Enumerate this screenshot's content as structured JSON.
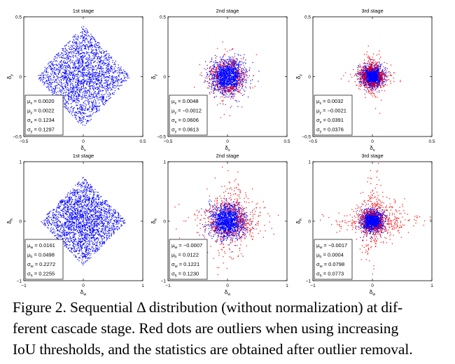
{
  "chart_data": [
    {
      "type": "scatter",
      "title": "1st stage",
      "xlabel": "δx",
      "ylabel": "δy",
      "xlim": [
        -0.5,
        0.5
      ],
      "ylim": [
        -0.5,
        0.5
      ],
      "xticks": [
        "-0.5",
        "0",
        "0.5"
      ],
      "yticks": [
        "0.5",
        "0",
        "-0.5"
      ],
      "spread": [
        0.1234,
        0.1297
      ],
      "outlier_spread": 0,
      "stats_box": [
        "μx = 0.0020",
        "μy = 0.0022",
        "σx = 0.1234",
        "σy = 0.1297"
      ],
      "series": [
        {
          "name": "inliers",
          "color": "#0000ff"
        }
      ]
    },
    {
      "type": "scatter",
      "title": "2nd stage",
      "xlabel": "δx",
      "ylabel": "δy",
      "xlim": [
        -0.5,
        0.5
      ],
      "ylim": [
        -0.5,
        0.5
      ],
      "xticks": [
        "-0.5",
        "0",
        "0.5"
      ],
      "yticks": [
        "0.5",
        "0",
        "-0.5"
      ],
      "spread": [
        0.0606,
        0.0613
      ],
      "outlier_spread": 0.16,
      "stats_box": [
        "μx = 0.0048",
        "μy = −0.0012",
        "σx = 0.0606",
        "σy = 0.0613"
      ],
      "series": [
        {
          "name": "inliers",
          "color": "#0000ff"
        },
        {
          "name": "outliers",
          "color": "#ff0000"
        }
      ]
    },
    {
      "type": "scatter",
      "title": "3rd stage",
      "xlabel": "δx",
      "ylabel": "δy",
      "xlim": [
        -0.5,
        0.5
      ],
      "ylim": [
        -0.5,
        0.5
      ],
      "xticks": [
        "-0.5",
        "0",
        "0.5"
      ],
      "yticks": [
        "0.5",
        "0",
        "-0.5"
      ],
      "spread": [
        0.0391,
        0.0376
      ],
      "outlier_spread": 0.14,
      "stats_box": [
        "μx = 0.0032",
        "μy = −0.0021",
        "σx = 0.0391",
        "σy = 0.0376"
      ],
      "series": [
        {
          "name": "inliers",
          "color": "#0000ff"
        },
        {
          "name": "outliers",
          "color": "#ff0000"
        }
      ]
    },
    {
      "type": "scatter",
      "title": "1st stage",
      "xlabel": "δw",
      "ylabel": "δh",
      "xlim": [
        -1,
        1
      ],
      "ylim": [
        -1,
        1
      ],
      "xticks": [
        "-1",
        "0",
        "1"
      ],
      "yticks": [
        "1",
        "0",
        "-1"
      ],
      "spread": [
        0.2272,
        0.2255
      ],
      "outlier_spread": 0,
      "stats_box": [
        "μw = 0.0161",
        "μh = 0.0498",
        "σw = 0.2272",
        "σh = 0.2255"
      ],
      "series": [
        {
          "name": "inliers",
          "color": "#0000ff"
        }
      ]
    },
    {
      "type": "scatter",
      "title": "2nd stage",
      "xlabel": "δw",
      "ylabel": "δh",
      "xlim": [
        -1,
        1
      ],
      "ylim": [
        -1,
        1
      ],
      "xticks": [
        "-1",
        "0",
        "1"
      ],
      "yticks": [
        "1",
        "0",
        "-1"
      ],
      "spread": [
        0.1221,
        0.123
      ],
      "outlier_spread": 0.3,
      "stats_box": [
        "μw = −0.0007",
        "μh = 0.0122",
        "σw = 0.1221",
        "σh = 0.1230"
      ],
      "series": [
        {
          "name": "inliers",
          "color": "#0000ff"
        },
        {
          "name": "outliers",
          "color": "#ff0000"
        }
      ]
    },
    {
      "type": "scatter",
      "title": "3rd stage",
      "xlabel": "δw",
      "ylabel": "δh",
      "xlim": [
        -1,
        1
      ],
      "ylim": [
        -1,
        1
      ],
      "xticks": [
        "-1",
        "0",
        "1"
      ],
      "yticks": [
        "1",
        "0",
        "-1"
      ],
      "spread": [
        0.0798,
        0.0773
      ],
      "outlier_spread": 0.28,
      "stats_box": [
        "μw = −0.0017",
        "μh = 0.0004",
        "σw = 0.0798",
        "σh = 0.0773"
      ],
      "series": [
        {
          "name": "inliers",
          "color": "#0000ff"
        },
        {
          "name": "outliers",
          "color": "#ff0000"
        }
      ]
    }
  ],
  "caption": {
    "lines": [
      "Figure 2. Sequential Δ distribution (without normalization) at dif-",
      "ferent cascade stage. Red dots are outliers when using increasing",
      "IoU thresholds, and the statistics are obtained after outlier removal."
    ]
  }
}
